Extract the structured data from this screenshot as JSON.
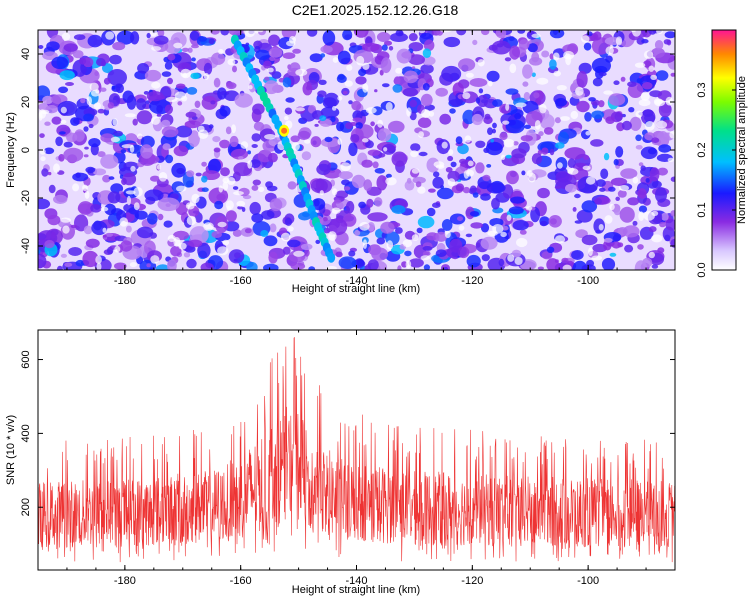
{
  "title": "C2E1.2025.152.12.26.G18",
  "chart_data": [
    {
      "type": "heatmap",
      "xlabel": "Height of straight line (km)",
      "ylabel": "Frequency (Hz)",
      "xlim": [
        -195,
        -85
      ],
      "ylim": [
        -50,
        50
      ],
      "xticks": [
        -180,
        -160,
        -140,
        -120,
        -100
      ],
      "yticks": [
        -40,
        -20,
        0,
        20,
        40
      ],
      "colorbar": {
        "label": "Normalized spectral amplitude",
        "range": [
          0.0,
          0.4
        ],
        "ticks": [
          0.0,
          0.1,
          0.2,
          0.3
        ]
      },
      "feature_track": {
        "description_points": [
          {
            "x": -161,
            "y": 46
          },
          {
            "x": -157,
            "y": 27
          },
          {
            "x": -153,
            "y": 8
          },
          {
            "x": -150,
            "y": -10
          },
          {
            "x": -147,
            "y": -30
          },
          {
            "x": -144,
            "y": -47
          }
        ],
        "peak": {
          "x": -152.5,
          "y": 8,
          "value": 0.39
        }
      }
    },
    {
      "type": "line",
      "xlabel": "Height of straight line (km)",
      "ylabel": "SNR (10 * v/v)",
      "xlim": [
        -195,
        -85
      ],
      "ylim": [
        30,
        680
      ],
      "xticks": [
        -180,
        -160,
        -140,
        -120,
        -100
      ],
      "yticks": [
        200,
        400,
        600
      ],
      "series_color": "#ee3333",
      "baseline": 150,
      "envelope": [
        {
          "x": -195,
          "lo": 50,
          "hi": 380
        },
        {
          "x": -180,
          "lo": 50,
          "hi": 390
        },
        {
          "x": -165,
          "lo": 60,
          "hi": 420
        },
        {
          "x": -160,
          "lo": 60,
          "hi": 480
        },
        {
          "x": -155,
          "lo": 70,
          "hi": 600
        },
        {
          "x": -151,
          "lo": 120,
          "hi": 680
        },
        {
          "x": -148,
          "lo": 70,
          "hi": 560
        },
        {
          "x": -143,
          "lo": 60,
          "hi": 470
        },
        {
          "x": -130,
          "lo": 50,
          "hi": 420
        },
        {
          "x": -110,
          "lo": 50,
          "hi": 400
        },
        {
          "x": -85,
          "lo": 50,
          "hi": 380
        }
      ]
    }
  ]
}
